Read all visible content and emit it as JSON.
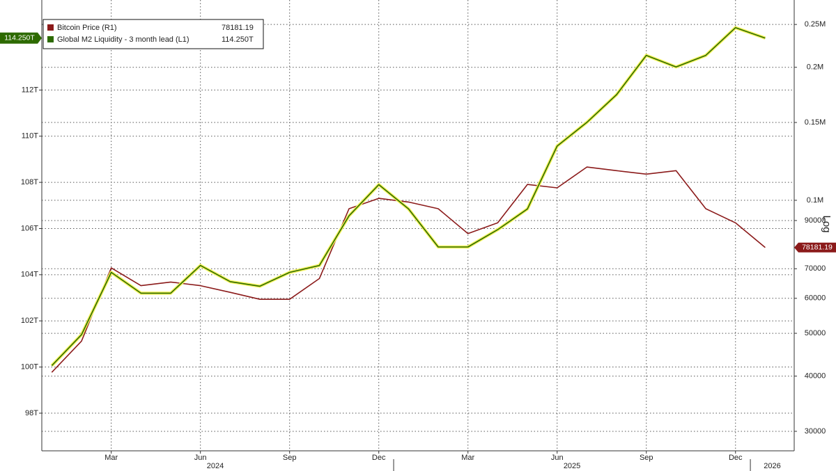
{
  "chart_data": {
    "type": "line",
    "x": [
      "2024-01",
      "2024-02",
      "2024-03",
      "2024-04",
      "2024-05",
      "2024-06",
      "2024-07",
      "2024-08",
      "2024-09",
      "2024-10",
      "2024-11",
      "2024-12",
      "2025-01",
      "2025-02",
      "2025-03",
      "2025-04",
      "2025-05",
      "2025-06",
      "2025-07",
      "2025-08",
      "2025-09",
      "2025-10",
      "2025-11",
      "2025-12",
      "2026-01"
    ],
    "series": [
      {
        "name": "Bitcoin Price (R1)",
        "color": "#8b1a1a",
        "axis": "y2",
        "values": [
          40800,
          48000,
          70300,
          64100,
          65300,
          64100,
          61900,
          59700,
          59700,
          66500,
          95700,
          101000,
          99100,
          95700,
          84100,
          88900,
          108600,
          106700,
          118900,
          116700,
          114600,
          116700,
          95700,
          88900,
          78181.19
        ]
      },
      {
        "name": "Global M2 Liquidity - 3 month lead (L1)",
        "color": "#2d6a00",
        "axis": "y",
        "values": [
          100.06,
          101.4,
          104.1,
          103.2,
          103.2,
          104.4,
          103.7,
          103.5,
          104.1,
          104.4,
          106.55,
          107.9,
          106.85,
          105.2,
          105.2,
          105.95,
          106.85,
          109.57,
          110.6,
          111.8,
          113.5,
          113.0,
          113.5,
          114.7,
          114.25
        ],
        "value_labels": [
          null,
          null,
          null,
          null,
          null,
          null,
          null,
          null,
          null,
          null,
          null,
          null,
          null,
          null,
          null,
          null,
          null,
          null,
          null,
          null,
          null,
          null,
          null,
          null,
          "114.250T"
        ]
      }
    ],
    "ylim": [
      96.37,
      115.9
    ],
    "yticks": [
      {
        "value": 98,
        "label": "98T"
      },
      {
        "value": 100,
        "label": "100T"
      },
      {
        "value": 102,
        "label": "102T"
      },
      {
        "value": 104,
        "label": "104T"
      },
      {
        "value": 106,
        "label": "106T"
      },
      {
        "value": 108,
        "label": "108T"
      },
      {
        "value": 110,
        "label": "110T"
      },
      {
        "value": 112,
        "label": "112T"
      }
    ],
    "y2lim": [
      27100,
      284000
    ],
    "y2log": true,
    "y2label": "Log",
    "y2ticks": [
      {
        "value": 250000,
        "label": "0.25M"
      },
      {
        "value": 200000,
        "label": "0.2M"
      },
      {
        "value": 150000,
        "label": "0.15M"
      },
      {
        "value": 100000,
        "label": "0.1M"
      },
      90000,
      70000,
      60000,
      50000,
      40000,
      30000
    ],
    "xticks": [
      {
        "value": "2024-03",
        "label": "Mar"
      },
      {
        "value": "2024-06",
        "label": "Jun"
      },
      {
        "value": "2024-09",
        "label": "Sep"
      },
      {
        "value": "2024-12",
        "label": "Dec"
      },
      {
        "value": "2025-03",
        "label": "Mar"
      },
      {
        "value": "2025-06",
        "label": "Jun"
      },
      {
        "value": "2025-09",
        "label": "Sep"
      },
      {
        "value": "2025-12",
        "label": "Dec"
      }
    ],
    "year_ticks": [
      "2024",
      "2025",
      "2026"
    ],
    "grid": true
  }
}
